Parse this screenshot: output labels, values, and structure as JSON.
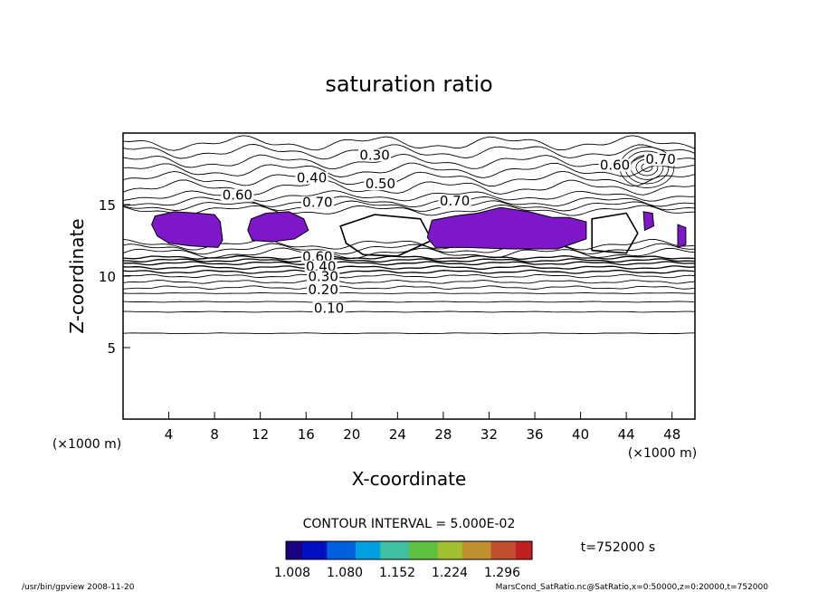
{
  "chart_data": {
    "type": "contour",
    "title": "saturation ratio",
    "xlabel": "X-coordinate",
    "ylabel": "Z-coordinate",
    "x_unit": "(×1000 m)",
    "y_unit": "(×1000 m)",
    "xlim": [
      0,
      50
    ],
    "ylim": [
      0,
      20
    ],
    "xticks": [
      4,
      8,
      12,
      16,
      20,
      24,
      28,
      32,
      36,
      40,
      44,
      48
    ],
    "yticks": [
      5,
      10,
      15
    ],
    "contour_interval_text": "CONTOUR INTERVAL = 5.000E-02",
    "time_text": "t=752000 s",
    "colorbar": {
      "ticks": [
        "1.008",
        "1.080",
        "1.152",
        "1.224",
        "1.296"
      ],
      "colors": [
        "#1a0080",
        "#0010c0",
        "#0060e0",
        "#00a0e0",
        "#40c0a0",
        "#60c040",
        "#a0c030",
        "#c09030",
        "#c05030",
        "#c02020"
      ]
    },
    "fill_color": "#7d17c9",
    "contour_labels": [
      {
        "text": "0.30",
        "x": 22.0,
        "z": 18.2
      },
      {
        "text": "0.40",
        "x": 16.5,
        "z": 16.6
      },
      {
        "text": "0.50",
        "x": 22.5,
        "z": 16.2
      },
      {
        "text": "0.60",
        "x": 10.0,
        "z": 15.4
      },
      {
        "text": "0.70",
        "x": 17.0,
        "z": 14.9
      },
      {
        "text": "0.70",
        "x": 29.0,
        "z": 15.0
      },
      {
        "text": "0.60",
        "x": 43.0,
        "z": 17.5
      },
      {
        "text": "0.70",
        "x": 47.0,
        "z": 17.9
      },
      {
        "text": "0.60",
        "x": 17.0,
        "z": 11.1
      },
      {
        "text": "0.40",
        "x": 17.3,
        "z": 10.4
      },
      {
        "text": "0.30",
        "x": 17.5,
        "z": 9.7
      },
      {
        "text": "0.20",
        "x": 17.5,
        "z": 8.8
      },
      {
        "text": "0.10",
        "x": 18.0,
        "z": 7.5
      }
    ],
    "supersaturated_regions": [
      [
        [
          2.8,
          14.2
        ],
        [
          4.5,
          14.5
        ],
        [
          6.5,
          14.4
        ],
        [
          8.0,
          14.3
        ],
        [
          8.5,
          13.8
        ],
        [
          8.7,
          12.5
        ],
        [
          8.3,
          12.0
        ],
        [
          6.0,
          12.1
        ],
        [
          4.0,
          12.3
        ],
        [
          3.0,
          12.8
        ],
        [
          2.5,
          13.6
        ]
      ],
      [
        [
          11.2,
          14.0
        ],
        [
          12.5,
          14.4
        ],
        [
          14.5,
          14.5
        ],
        [
          15.8,
          14.0
        ],
        [
          16.2,
          13.2
        ],
        [
          15.0,
          12.6
        ],
        [
          13.0,
          12.4
        ],
        [
          11.3,
          12.5
        ],
        [
          10.9,
          13.2
        ]
      ],
      [
        [
          27.0,
          13.9
        ],
        [
          29.0,
          14.2
        ],
        [
          31.0,
          14.4
        ],
        [
          33.0,
          14.8
        ],
        [
          35.5,
          14.5
        ],
        [
          37.5,
          14.1
        ],
        [
          39.0,
          14.1
        ],
        [
          40.5,
          13.8
        ],
        [
          40.5,
          12.6
        ],
        [
          38.0,
          11.9
        ],
        [
          34.0,
          11.9
        ],
        [
          30.0,
          12.0
        ],
        [
          27.3,
          12.0
        ],
        [
          26.6,
          12.7
        ]
      ],
      [
        [
          45.5,
          14.5
        ],
        [
          46.3,
          14.4
        ],
        [
          46.4,
          13.5
        ],
        [
          45.6,
          13.2
        ]
      ],
      [
        [
          48.5,
          13.6
        ],
        [
          49.2,
          13.4
        ],
        [
          49.2,
          12.2
        ],
        [
          48.5,
          12.0
        ]
      ]
    ],
    "contour_levels_z": [
      6.0,
      7.5,
      8.2,
      8.8,
      9.2,
      9.6,
      10.0,
      10.3,
      10.6,
      10.9,
      11.1,
      11.3
    ]
  },
  "footer": {
    "left": "/usr/bin/gpview   2008-11-20",
    "right": "MarsCond_SatRatio.nc@SatRatio,x=0:50000,z=0:20000,t=752000"
  }
}
